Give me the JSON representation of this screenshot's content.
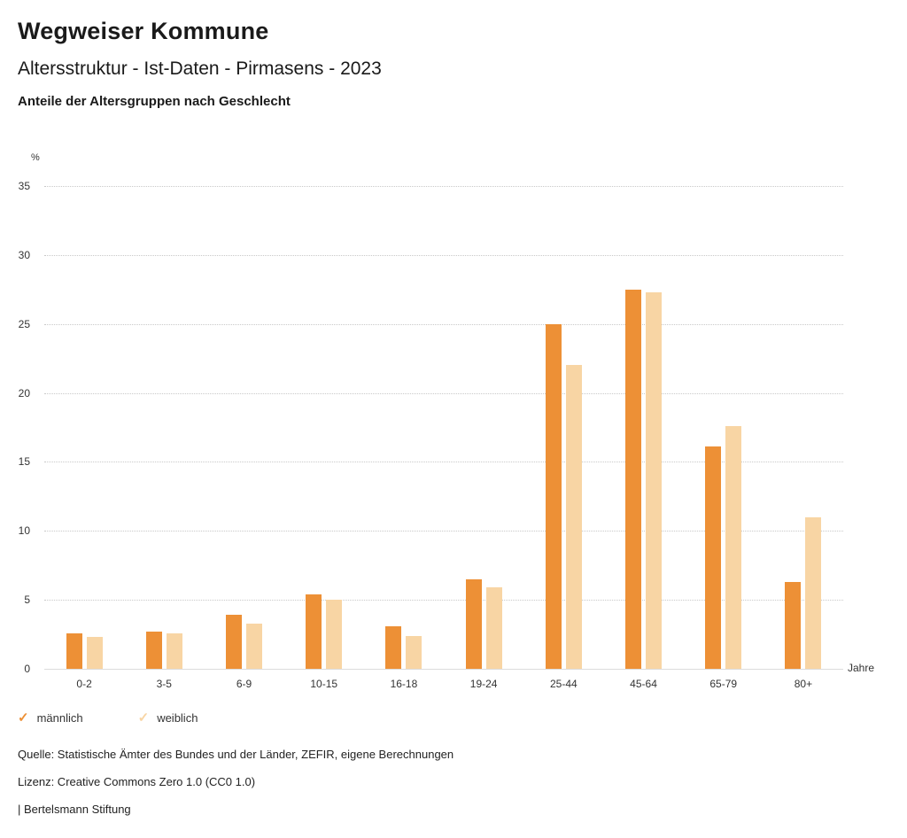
{
  "header": {
    "title": "Wegweiser Kommune",
    "subtitle": "Altersstruktur - Ist-Daten - Pirmasens - 2023",
    "description": "Anteile der Altersgruppen nach Geschlecht"
  },
  "chart_data": {
    "type": "bar",
    "categories": [
      "0-2",
      "3-5",
      "6-9",
      "10-15",
      "16-18",
      "19-24",
      "25-44",
      "45-64",
      "65-79",
      "80+"
    ],
    "series": [
      {
        "name": "männlich",
        "color": "#ED9036",
        "values": [
          2.6,
          2.7,
          3.9,
          5.4,
          3.1,
          6.5,
          25.0,
          27.5,
          16.1,
          6.3
        ]
      },
      {
        "name": "weiblich",
        "color": "#F8D5A4",
        "values": [
          2.3,
          2.6,
          3.3,
          5.0,
          2.4,
          5.9,
          22.0,
          27.3,
          17.6,
          11.0
        ]
      }
    ],
    "title": "Anteile der Altersgruppen nach Geschlecht",
    "xlabel": "Jahre",
    "ylabel": "%",
    "ylim": [
      0,
      35
    ],
    "ytick_step": 5,
    "grid": true,
    "legend_position": "bottom"
  },
  "legend": {
    "mark_glyph": "✓"
  },
  "footer": {
    "source": "Quelle: Statistische Ämter des Bundes und der Länder, ZEFIR, eigene Berechnungen",
    "license": "Lizenz: Creative Commons Zero 1.0 (CC0 1.0)",
    "brand": "| Bertelsmann Stiftung"
  }
}
